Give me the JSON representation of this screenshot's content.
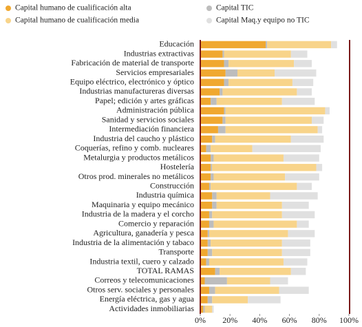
{
  "chart_data": {
    "type": "stacked_barh",
    "categories": [
      "Educación",
      "Industrias extractivas",
      "Fabricación de material de transporte",
      "Servicios empresariales",
      "Equipo eléctrico, electrónico y óptico",
      "Industrias manufactureras diversas",
      "Papel; edición y artes gráficas",
      "Administración pública",
      "Sanidad y servicios sociales",
      "Intermediación financiera",
      "Industria del caucho y plástico",
      "Coquerías, refino y comb. nucleares",
      "Metalurgia y  productos metálicos",
      "Hostelería",
      "Otros prod. minerales no metálicos",
      "Construcción",
      "Industria química",
      "Maquinaria y equipo mecánico",
      "Industria de la madera y el corcho",
      "Comercio y reparación",
      "Agricultura, ganadería y pesca",
      "Industria de la alimentación y tabaco",
      "Transporte",
      "Industria textil, cuero y calzado",
      "TOTAL RAMAS",
      "Correos y telecomunicaciones",
      "Otros serv. sociales y  personales",
      "Energía eléctrica, gas y agua",
      "Actividades inmobiliarias"
    ],
    "series": [
      {
        "name": "Capital humano de cualificación alta",
        "color": "#f0a830",
        "values": [
          44,
          15,
          16,
          17,
          16,
          13,
          7,
          16,
          15,
          12,
          8,
          4,
          7,
          7,
          7,
          6,
          8,
          8,
          6,
          6,
          5,
          5,
          5,
          4,
          10,
          3,
          6,
          5,
          2
        ]
      },
      {
        "name": "Capital TIC",
        "color": "#bdbdbd",
        "values": [
          1,
          1,
          3,
          8,
          3,
          2,
          4,
          1,
          2,
          5,
          2,
          3,
          2,
          1,
          2,
          1,
          3,
          3,
          2,
          3,
          1,
          2,
          3,
          2,
          3,
          15,
          4,
          3,
          1
        ]
      },
      {
        "name": "Capital humano de cualificación media",
        "color": "#f8d48a",
        "values": [
          43,
          45,
          44,
          25,
          43,
          50,
          44,
          67,
          58,
          62,
          51,
          28,
          47,
          70,
          48,
          58,
          36,
          44,
          47,
          56,
          53,
          48,
          47,
          50,
          48,
          29,
          43,
          24,
          5
        ]
      },
      {
        "name": "Capital Maq.y equipo no TIC",
        "color": "#e0e0e0",
        "values": [
          4,
          11,
          12,
          28,
          14,
          10,
          22,
          3,
          8,
          3,
          22,
          46,
          24,
          4,
          23,
          10,
          32,
          18,
          22,
          8,
          18,
          19,
          19,
          16,
          10,
          12,
          20,
          22,
          1
        ]
      }
    ],
    "xlim": [
      0,
      100
    ],
    "xticks": [
      {
        "value": 0,
        "label": "0%"
      },
      {
        "value": 20,
        "label": "20%"
      },
      {
        "value": 40,
        "label": "40%"
      },
      {
        "value": 60,
        "label": "60%"
      },
      {
        "value": 80,
        "label": "80%"
      },
      {
        "value": 100,
        "label": "100%"
      }
    ],
    "legend": "top"
  }
}
